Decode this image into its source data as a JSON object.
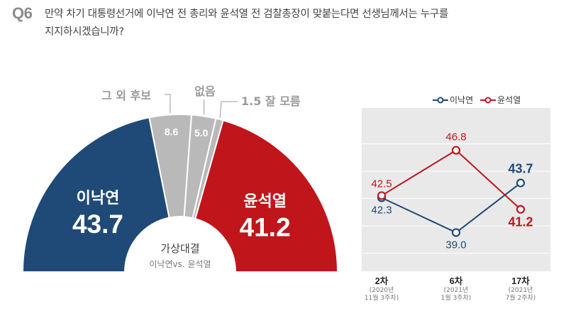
{
  "question": {
    "badge": "Q6",
    "line1": "만약 차기 대통령선거에 이낙연 전 총리와 윤석열 전 검찰총장이 맞붙는다면 선생님께서는 누구를",
    "line2": "지지하시겠습니까?"
  },
  "colors": {
    "lee": "#1f4a78",
    "yoon": "#c0151b",
    "other": "#b9b9b9",
    "panel": "#e9e9e9"
  },
  "chart_data": [
    {
      "type": "pie",
      "variant": "semicircle-donut",
      "center_label": {
        "title": "가상대결",
        "subtitle": "이낙연vs. 윤석열"
      },
      "slices": [
        {
          "name": "이낙연",
          "value": 43.7,
          "color": "#1f4a78"
        },
        {
          "name": "그 외 후보",
          "value": 8.6,
          "color": "#b9b9b9"
        },
        {
          "name": "없음",
          "value": 5.0,
          "color": "#b9b9b9"
        },
        {
          "name": "잘 모름",
          "value": 1.5,
          "color": "#b9b9b9"
        },
        {
          "name": "윤석열",
          "value": 41.2,
          "color": "#c0151b"
        }
      ],
      "outside_labels": {
        "other": "그 외 후보",
        "none": "없음",
        "dk": "1.5 잘 모름"
      }
    },
    {
      "type": "line",
      "categories": [
        {
          "label": "2차",
          "sub1": "(2020년",
          "sub2": "11월 3주차)"
        },
        {
          "label": "6차",
          "sub1": "(2021년",
          "sub2": "1월 3주차)"
        },
        {
          "label": "17차",
          "sub1": "(2021년",
          "sub2": "7월 2주차)"
        }
      ],
      "legend": [
        "이낙연",
        "윤석열"
      ],
      "series": [
        {
          "name": "이낙연",
          "values": [
            42.3,
            39.0,
            43.7
          ],
          "labels": [
            "42.3",
            "39.0",
            "43.7"
          ],
          "color": "#1f4a78"
        },
        {
          "name": "윤석열",
          "values": [
            42.5,
            46.8,
            41.2
          ],
          "labels": [
            "42.5",
            "46.8",
            "41.2"
          ],
          "color": "#c0151b"
        }
      ],
      "ylim": [
        36,
        50
      ],
      "grid": true
    }
  ]
}
